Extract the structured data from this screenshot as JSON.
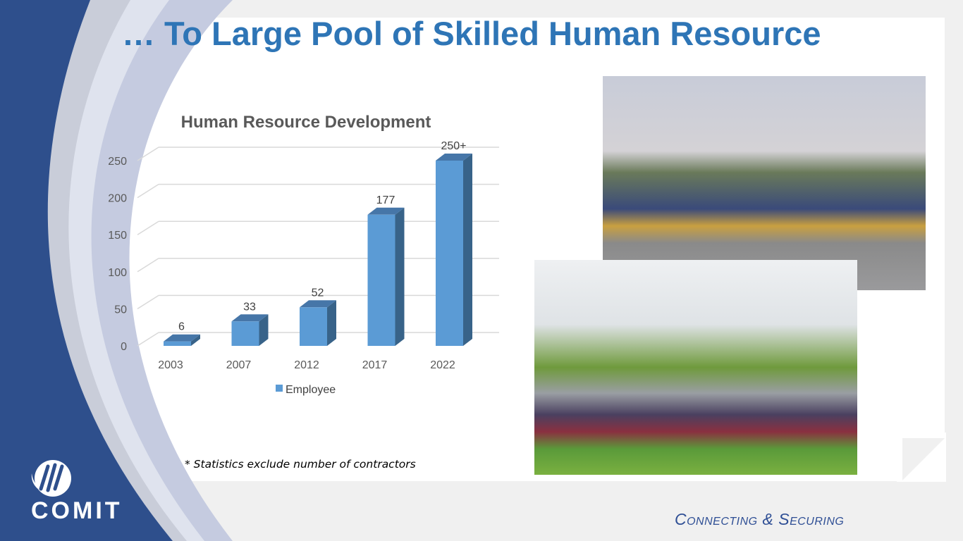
{
  "slide": {
    "title": "… To Large Pool of Skilled Human Resource",
    "note": "* Statistics exclude number of contractors",
    "logo_text": "COMIT",
    "tagline": "Connecting & Securing",
    "brand_color": "#2e4f8c"
  },
  "photos": [
    {
      "name": "team-photo-outdoor"
    },
    {
      "name": "team-photo-football-field"
    }
  ],
  "chart_data": {
    "type": "bar",
    "style": "3d-column",
    "title": "Human Resource Development",
    "categories": [
      "2003",
      "2007",
      "2012",
      "2017",
      "2022"
    ],
    "series": [
      {
        "name": "Employee",
        "values": [
          6,
          33,
          52,
          177,
          250
        ],
        "labels": [
          "6",
          "33",
          "52",
          "177",
          "250+"
        ],
        "color": "#5b9bd5"
      }
    ],
    "ylim": [
      0,
      250
    ],
    "yticks": [
      0,
      50,
      100,
      150,
      200,
      250
    ],
    "grid": true,
    "legend": "bottom"
  }
}
